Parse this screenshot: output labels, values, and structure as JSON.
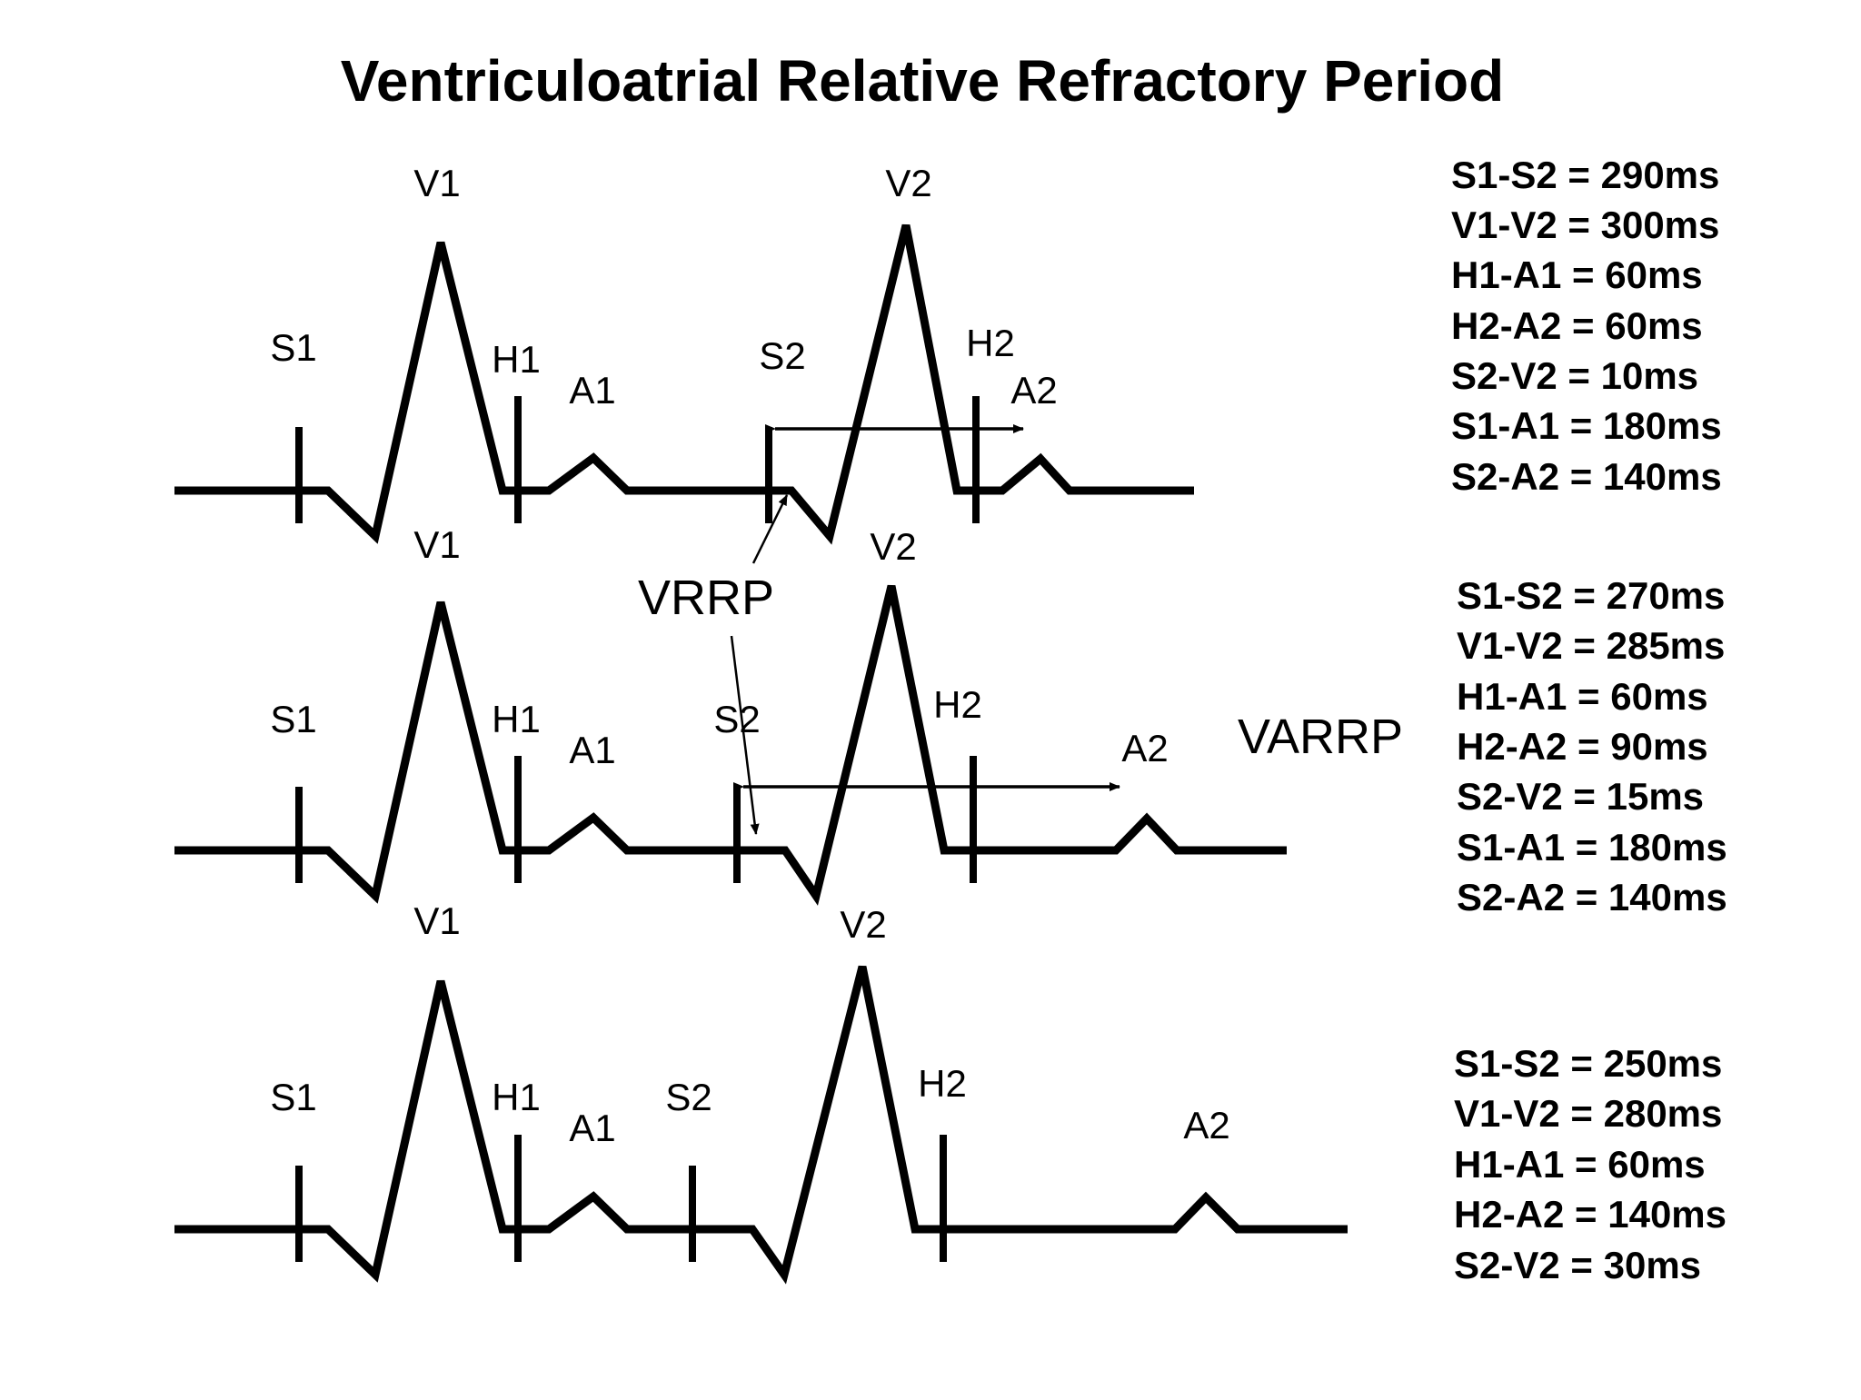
{
  "title": "Ventriculoatrial Relative Refractory Period",
  "panels": [
    {
      "labels": {
        "S1": "S1",
        "V1": "V1",
        "H1": "H1",
        "A1": "A1",
        "S2": "S2",
        "V2": "V2",
        "H2": "H2",
        "A2": "A2"
      },
      "measurements": [
        "S1-S2 = 290ms",
        "V1-V2 = 300ms",
        "H1-A1 = 60ms",
        "H2-A2 = 60ms",
        "S2-V2 = 10ms",
        "S1-A1 = 180ms",
        "S2-A2 = 140ms"
      ]
    },
    {
      "labels": {
        "S1": "S1",
        "V1": "V1",
        "H1": "H1",
        "A1": "A1",
        "S2": "S2",
        "V2": "V2",
        "H2": "H2",
        "A2": "A2"
      },
      "measurements": [
        "S1-S2 = 270ms",
        "V1-V2 = 285ms",
        "H1-A1 = 60ms",
        "H2-A2 = 90ms",
        "S2-V2 = 15ms",
        "S1-A1 = 180ms",
        "S2-A2 = 140ms"
      ]
    },
    {
      "labels": {
        "S1": "S1",
        "V1": "V1",
        "H1": "H1",
        "A1": "A1",
        "S2": "S2",
        "V2": "V2",
        "H2": "H2",
        "A2": "A2"
      },
      "measurements": [
        "S1-S2 = 250ms",
        "V1-V2 = 280ms",
        "H1-A1 = 60ms",
        "H2-A2 = 140ms",
        "S2-V2 = 30ms"
      ]
    }
  ],
  "annotations": {
    "vrrp": "VRRP",
    "varrp": "VARRP"
  }
}
